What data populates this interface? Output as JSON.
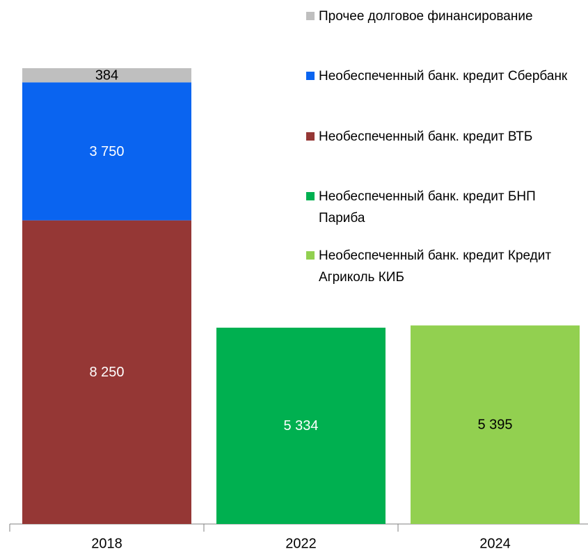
{
  "chart_data": {
    "type": "stacked_bar",
    "categories": [
      "2018",
      "2022",
      "2024"
    ],
    "series": [
      {
        "name": "Необеспеченный банк. кредит ВТБ",
        "color": "#953735",
        "label_color": "#ffffff",
        "values": [
          8250,
          null,
          null
        ],
        "value_labels": [
          "8 250",
          null,
          null
        ]
      },
      {
        "name": "Необеспеченный банк. кредит Сбербанк",
        "color": "#0a64f0",
        "label_color": "#ffffff",
        "values": [
          3750,
          null,
          null
        ],
        "value_labels": [
          "3 750",
          null,
          null
        ]
      },
      {
        "name": "Прочее долговое финансирование",
        "color": "#bfbfbf",
        "label_color": "#000000",
        "values": [
          384,
          null,
          null
        ],
        "value_labels": [
          "384",
          null,
          null
        ]
      },
      {
        "name": "Необеспеченный банк. кредит БНП Париба",
        "color": "#00b050",
        "label_color": "#ffffff",
        "values": [
          null,
          5334,
          null
        ],
        "value_labels": [
          null,
          "5 334",
          null
        ]
      },
      {
        "name": "Необеспеченный банк. кредит Кредит Агриколь КИБ",
        "color": "#92d050",
        "label_color": "#000000",
        "values": [
          null,
          null,
          5395
        ],
        "value_labels": [
          null,
          null,
          "5 395"
        ]
      }
    ],
    "legend_order": [
      2,
      1,
      0,
      3,
      4
    ]
  }
}
